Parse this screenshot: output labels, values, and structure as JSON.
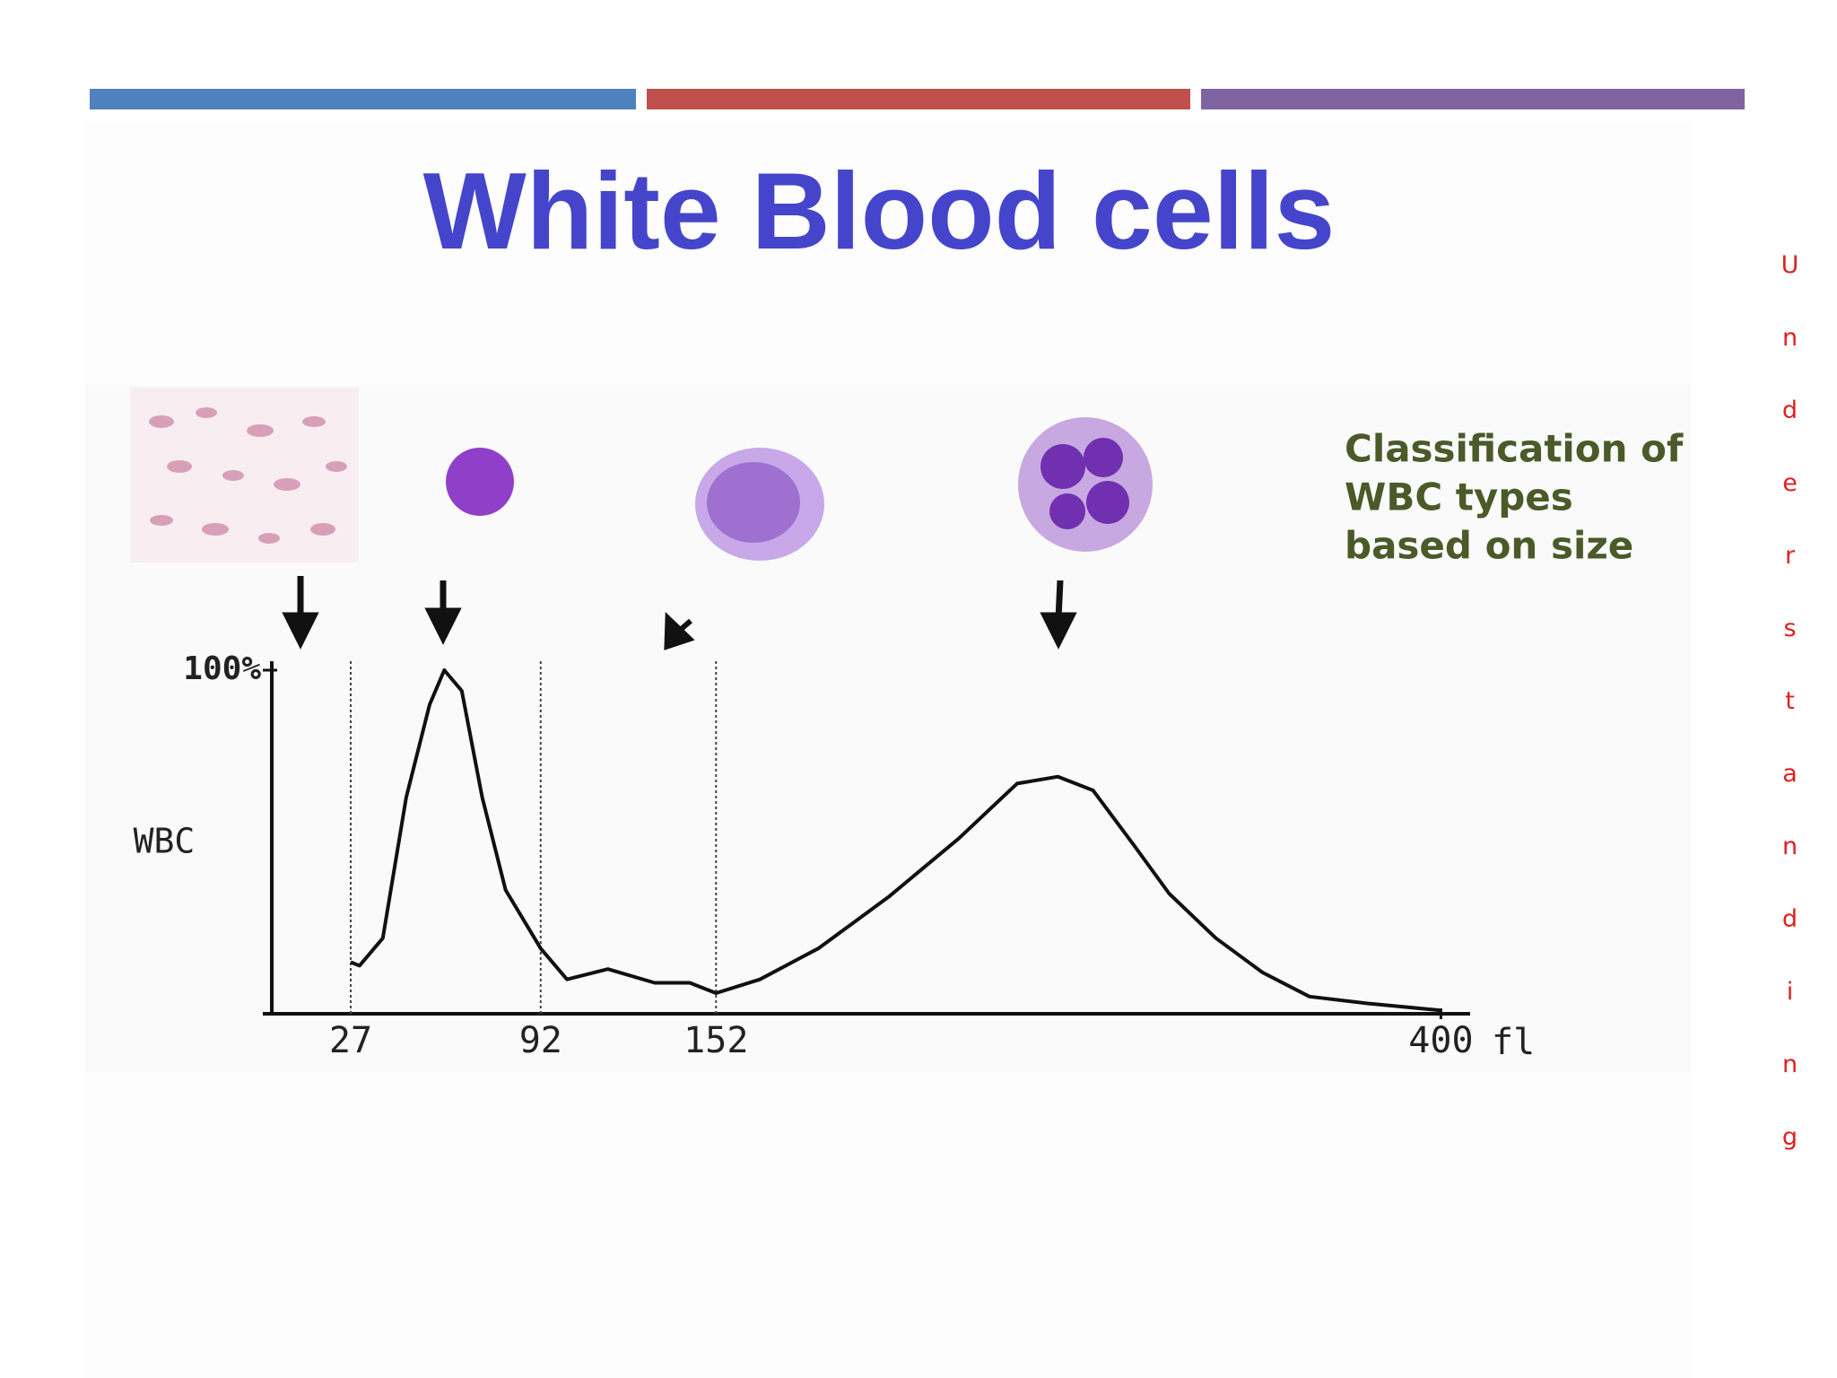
{
  "chart_data": {
    "type": "line",
    "title": "White Blood cells",
    "y_label": "WBC",
    "x_label": "fl",
    "annotation": [
      "Classification of",
      "WBC types",
      "based on size"
    ],
    "side_text": "Understanding",
    "color": "#111111",
    "x": [
      27,
      30,
      38,
      46,
      54,
      59,
      65,
      72,
      80,
      92,
      101,
      115,
      131,
      143,
      152,
      167,
      187,
      211,
      235,
      255,
      269,
      281,
      295,
      307,
      323,
      339,
      355,
      375,
      400
    ],
    "values": [
      15,
      14,
      22,
      63,
      90,
      100,
      94,
      63,
      36,
      19,
      10,
      13,
      9,
      9,
      6,
      10,
      19,
      34,
      51,
      67,
      69,
      65,
      49,
      35,
      22,
      12,
      5,
      3,
      1
    ],
    "xlim": [
      0,
      410
    ],
    "ylim": [
      0,
      100
    ],
    "xticks": [
      27,
      92,
      152,
      400
    ],
    "yticks": [
      {
        "value": 100,
        "label": "100%"
      }
    ],
    "grid": true
  }
}
